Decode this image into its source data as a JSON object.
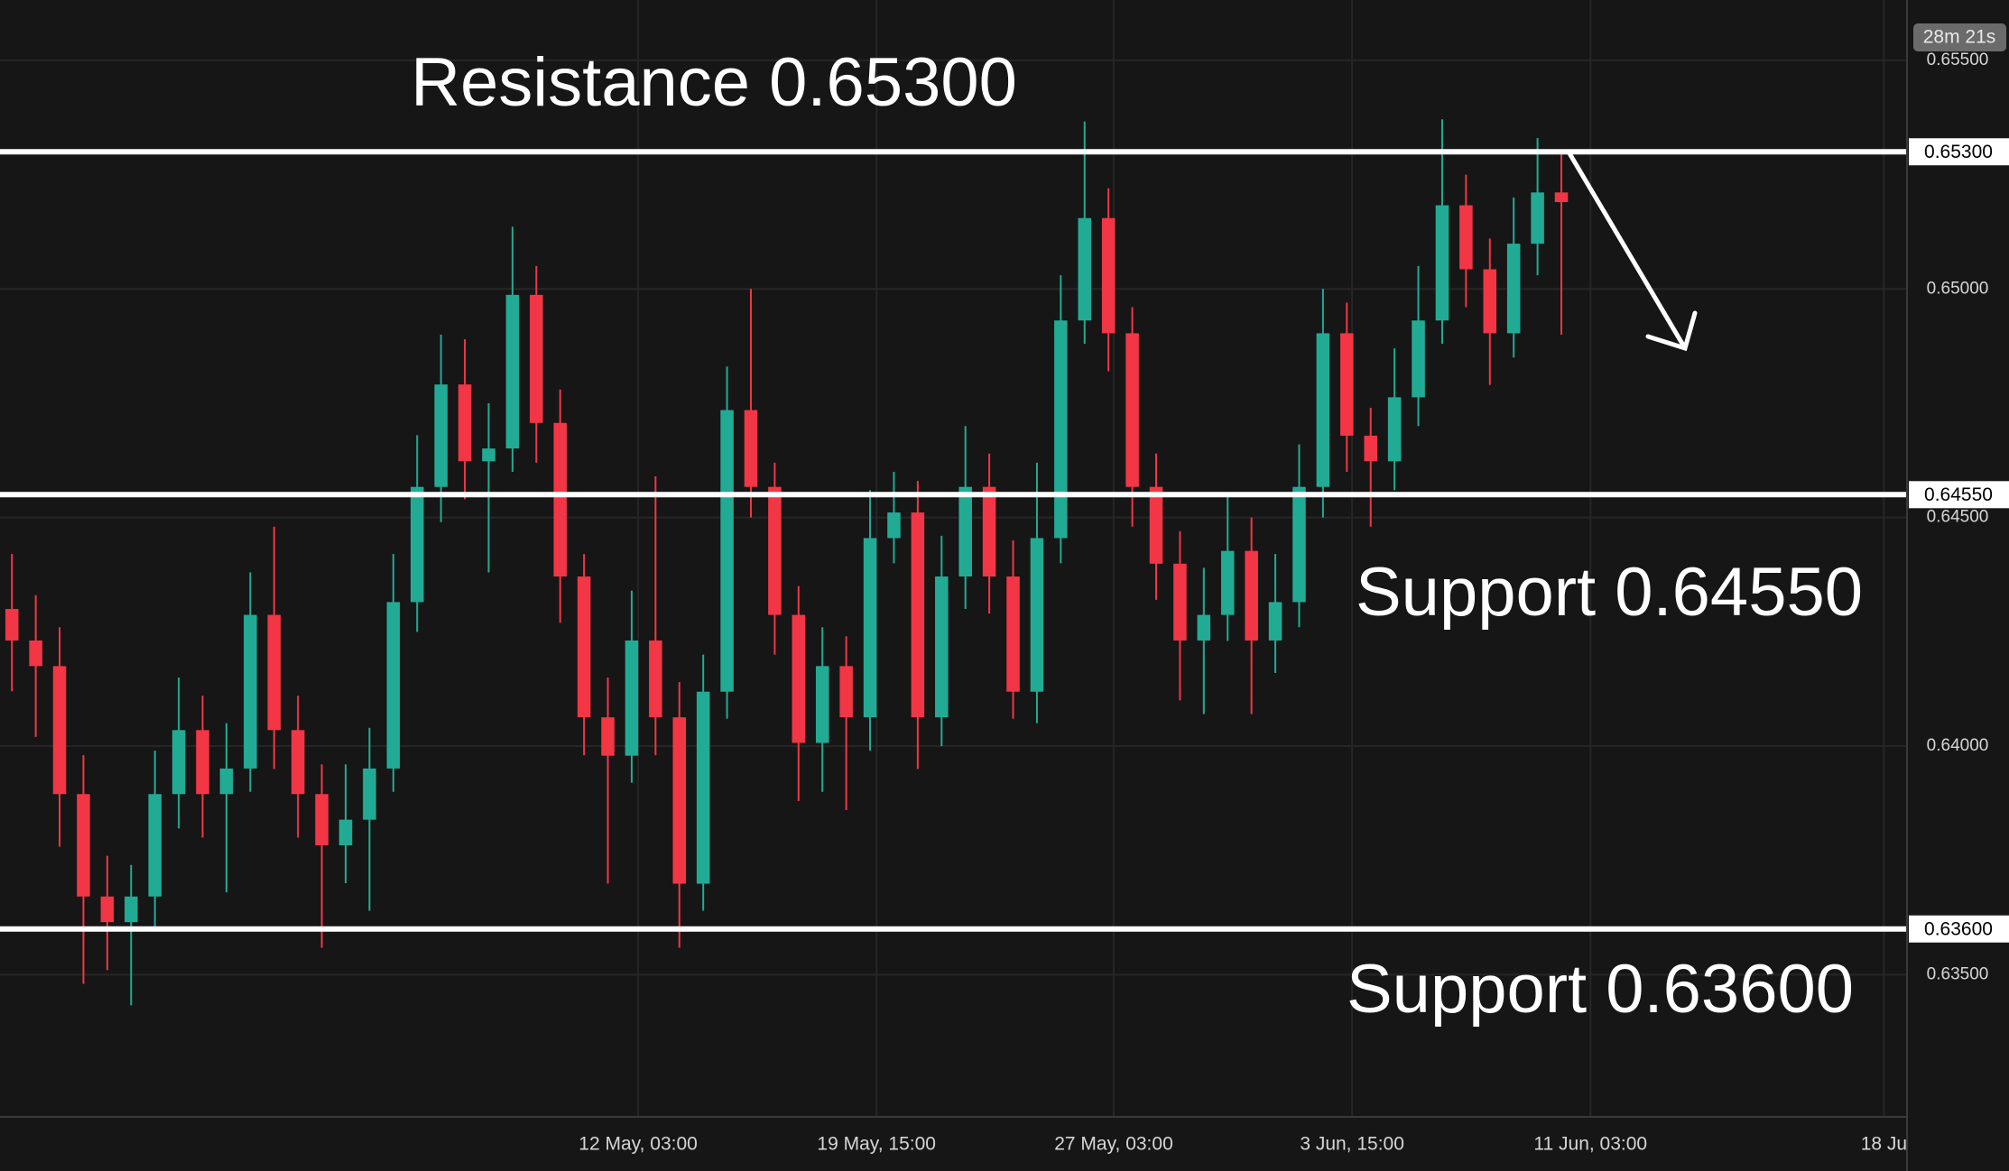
{
  "chart_data": {
    "type": "candlestick",
    "countdown": "28m 21s",
    "xlim": [
      -0.5,
      79.5
    ],
    "ylim": [
      0.63189,
      0.65632
    ],
    "xticks": [
      {
        "value": 26.27,
        "label": "12 May, 03:00"
      },
      {
        "value": 36.27,
        "label": "19 May, 15:00"
      },
      {
        "value": 46.22,
        "label": "27 May, 03:00"
      },
      {
        "value": 56.22,
        "label": "3 Jun, 15:00"
      },
      {
        "value": 66.22,
        "label": "11 Jun, 03:00"
      },
      {
        "value": 78.53,
        "label": "18 Ju"
      }
    ],
    "yticks": [
      {
        "value": 0.655,
        "label": "0.65500"
      },
      {
        "value": 0.65,
        "label": "0.65000"
      },
      {
        "value": 0.645,
        "label": "0.64500"
      },
      {
        "value": 0.64,
        "label": "0.64000"
      },
      {
        "value": 0.635,
        "label": "0.63500"
      }
    ],
    "grid": true,
    "up_color": "#22ab94",
    "down_color": "#f23645",
    "x": [
      0,
      1,
      2,
      3,
      4,
      5,
      6,
      7,
      8,
      9,
      10,
      11,
      12,
      13,
      14,
      15,
      16,
      17,
      18,
      19,
      20,
      21,
      22,
      23,
      24,
      25,
      26,
      27,
      28,
      29,
      30,
      31,
      32,
      33,
      34,
      35,
      36,
      37,
      38,
      39,
      40,
      41,
      42,
      43,
      44,
      45,
      46,
      47,
      48,
      49,
      50,
      51,
      52,
      53,
      54,
      55,
      56,
      57,
      58,
      59,
      60,
      61,
      62,
      63,
      64,
      65
    ],
    "open": [
      0.643,
      0.64231,
      0.64175,
      0.63895,
      0.63671,
      0.63615,
      0.63671,
      0.63895,
      0.64035,
      0.63895,
      0.63951,
      0.64287,
      0.64035,
      0.63895,
      0.63783,
      0.63839,
      0.63951,
      0.64315,
      0.64567,
      0.64791,
      0.64623,
      0.64651,
      0.64987,
      0.64707,
      0.64371,
      0.64063,
      0.63979,
      0.64231,
      0.64063,
      0.63699,
      0.64119,
      0.64735,
      0.64567,
      0.64287,
      0.64007,
      0.64175,
      0.64063,
      0.64455,
      0.64511,
      0.64063,
      0.64371,
      0.64567,
      0.64371,
      0.64119,
      0.64455,
      0.64931,
      0.65155,
      0.64903,
      0.64567,
      0.64399,
      0.64231,
      0.64287,
      0.64427,
      0.64231,
      0.64315,
      0.64567,
      0.64903,
      0.64679,
      0.64623,
      0.64763,
      0.64931,
      0.65183,
      0.65043,
      0.64903,
      0.65099,
      0.65211
    ],
    "high": [
      0.6442,
      0.6433,
      0.6426,
      0.6398,
      0.6376,
      0.6374,
      0.6399,
      0.6415,
      0.6411,
      0.6405,
      0.6438,
      0.6448,
      0.6411,
      0.6396,
      0.6396,
      0.6404,
      0.6442,
      0.6468,
      0.649,
      0.6489,
      0.6475,
      0.65136,
      0.6505,
      0.6478,
      0.6442,
      0.6415,
      0.6434,
      0.6459,
      0.6414,
      0.642,
      0.6483,
      0.65,
      0.6462,
      0.6435,
      0.6426,
      0.6424,
      0.6456,
      0.646,
      0.6458,
      0.6446,
      0.647,
      0.6464,
      0.6445,
      0.6462,
      0.6503,
      0.65366,
      0.6522,
      0.6496,
      0.6464,
      0.6447,
      0.6439,
      0.6455,
      0.645,
      0.6442,
      0.6466,
      0.65,
      0.6497,
      0.6474,
      0.6487,
      0.6505,
      0.65371,
      0.6525,
      0.6511,
      0.652,
      0.6533,
      0.653
    ],
    "low": [
      0.6412,
      0.6402,
      0.6378,
      0.6348,
      0.6351,
      0.63433,
      0.636,
      0.6382,
      0.638,
      0.6368,
      0.639,
      0.6395,
      0.638,
      0.63559,
      0.637,
      0.6364,
      0.639,
      0.6425,
      0.6449,
      0.6454,
      0.6438,
      0.646,
      0.6462,
      0.6427,
      0.6398,
      0.63699,
      0.6392,
      0.6398,
      0.63559,
      0.6364,
      0.6406,
      0.645,
      0.642,
      0.6388,
      0.639,
      0.6386,
      0.6399,
      0.644,
      0.6395,
      0.64,
      0.643,
      0.6429,
      0.6406,
      0.6405,
      0.644,
      0.6488,
      0.6482,
      0.6448,
      0.6432,
      0.641,
      0.6407,
      0.6423,
      0.6407,
      0.6416,
      0.6426,
      0.645,
      0.646,
      0.6448,
      0.6456,
      0.647,
      0.6488,
      0.6496,
      0.6479,
      0.6485,
      0.6503,
      0.649
    ],
    "close": [
      0.64231,
      0.64175,
      0.63895,
      0.63671,
      0.63615,
      0.63671,
      0.63895,
      0.64035,
      0.63895,
      0.63951,
      0.64287,
      0.64035,
      0.63895,
      0.63783,
      0.63839,
      0.63951,
      0.64315,
      0.64567,
      0.64791,
      0.64623,
      0.64651,
      0.64987,
      0.64707,
      0.64371,
      0.64063,
      0.63979,
      0.64231,
      0.64063,
      0.63699,
      0.64119,
      0.64735,
      0.64567,
      0.64287,
      0.64007,
      0.64175,
      0.64063,
      0.64455,
      0.64511,
      0.64063,
      0.64371,
      0.64567,
      0.64371,
      0.64119,
      0.64455,
      0.64931,
      0.65155,
      0.64903,
      0.64567,
      0.64399,
      0.64231,
      0.64287,
      0.64427,
      0.64231,
      0.64315,
      0.64567,
      0.64903,
      0.64679,
      0.64623,
      0.64763,
      0.64931,
      0.65183,
      0.65043,
      0.64903,
      0.65099,
      0.65211,
      0.6519
    ],
    "level_color": "#ffffff",
    "levels": [
      {
        "value": 0.653,
        "label": "0.65300",
        "text": "Resistance 0.65300"
      },
      {
        "value": 0.6455,
        "label": "0.64550",
        "text": "Support 0.64550"
      },
      {
        "value": 0.636,
        "label": "0.63600",
        "text": "Support 0.63600"
      }
    ]
  }
}
